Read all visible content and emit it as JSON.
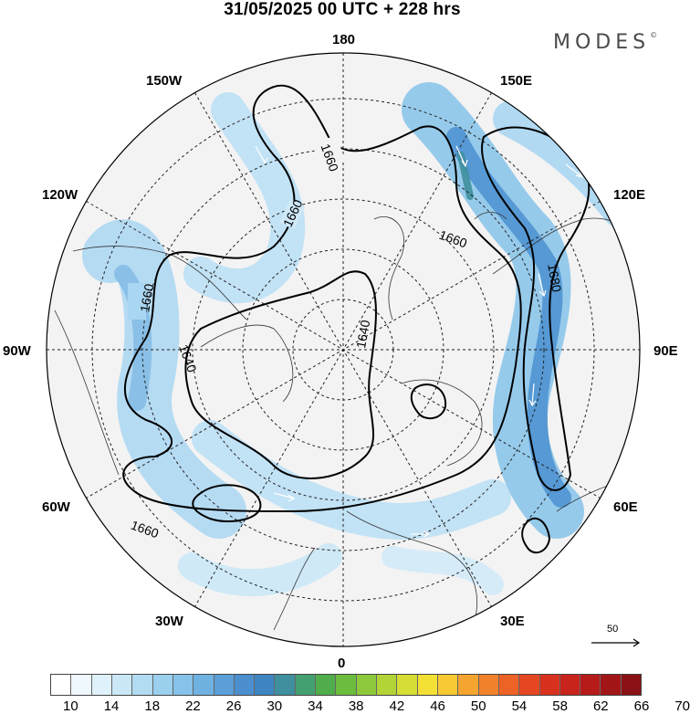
{
  "title": "31/05/2025  00 UTC  + 228 hrs",
  "logo": "MODES",
  "logo_mark": "©",
  "longitude_labels": {
    "n180": "180",
    "w150": "150W",
    "w120": "120W",
    "w90": "90W",
    "w60": "60W",
    "w30": "30W",
    "z0": "0",
    "e30": "30E",
    "e60": "60E",
    "e90": "90E",
    "e120": "120E",
    "e150": "150E"
  },
  "contour_labels": [
    "1660",
    "1660",
    "1660",
    "1660",
    "1640",
    "1640",
    "1660",
    "1680",
    "1660"
  ],
  "vector_reference": "50",
  "colorbar": {
    "colors": [
      "#ffffff",
      "#eef8fd",
      "#dff1fa",
      "#cbe8f7",
      "#b2dcf2",
      "#9bd0ee",
      "#86c2e9",
      "#6fb2e2",
      "#5a9fd8",
      "#4b8fcf",
      "#3e85c2",
      "#3f8f9e",
      "#44a070",
      "#4fae4b",
      "#6cbd3e",
      "#8ec93b",
      "#b2d436",
      "#d6dd34",
      "#f4e034",
      "#f8c932",
      "#f5a52f",
      "#f1822b",
      "#ed6326",
      "#e54722",
      "#d8321e",
      "#c8241c",
      "#b61b1a",
      "#a21618",
      "#8a1216"
    ],
    "ticks": [
      "10",
      "14",
      "18",
      "22",
      "26",
      "30",
      "34",
      "38",
      "42",
      "46",
      "50",
      "54",
      "58",
      "62",
      "66",
      "70"
    ]
  }
}
